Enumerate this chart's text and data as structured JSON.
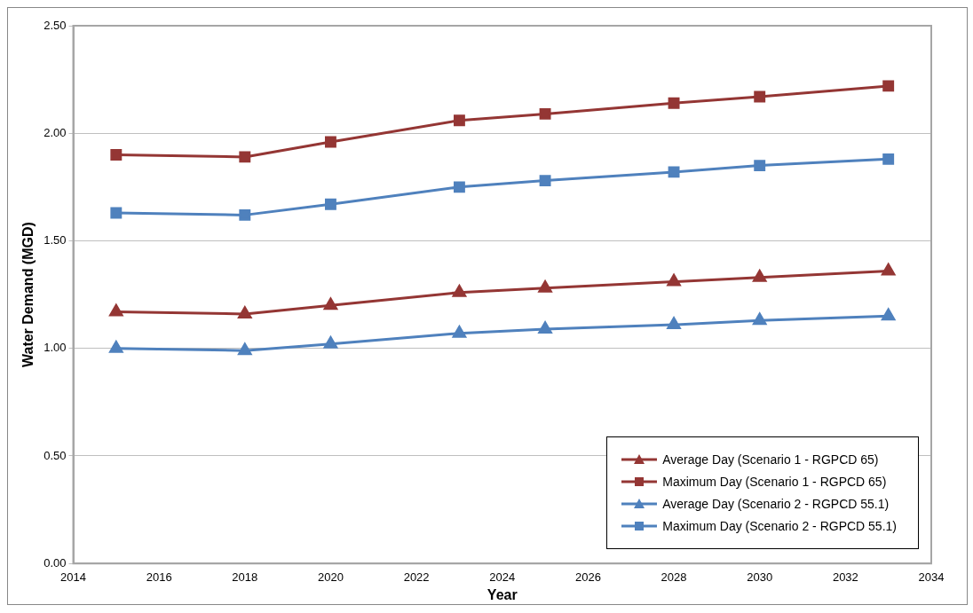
{
  "chart_data": {
    "type": "line",
    "xlabel": "Year",
    "ylabel": "Water Demand (MGD)",
    "x": [
      2015,
      2018,
      2020,
      2023,
      2025,
      2028,
      2030,
      2033
    ],
    "series": [
      {
        "name": "Average Day (Scenario 1 - RGPCD 65)",
        "color": "#943634",
        "marker": "triangle",
        "values": [
          1.17,
          1.16,
          1.2,
          1.26,
          1.28,
          1.31,
          1.33,
          1.36
        ]
      },
      {
        "name": "Maximum Day (Scenario 1 - RGPCD 65)",
        "color": "#943634",
        "marker": "square",
        "values": [
          1.9,
          1.89,
          1.96,
          2.06,
          2.09,
          2.14,
          2.17,
          2.22
        ]
      },
      {
        "name": "Average Day (Scenario 2 - RGPCD 55.1)",
        "color": "#4f81bd",
        "marker": "triangle",
        "values": [
          1.0,
          0.99,
          1.02,
          1.07,
          1.09,
          1.11,
          1.13,
          1.15
        ]
      },
      {
        "name": "Maximum Day (Scenario 2 - RGPCD 55.1)",
        "color": "#4f81bd",
        "marker": "square",
        "values": [
          1.63,
          1.62,
          1.67,
          1.75,
          1.78,
          1.82,
          1.85,
          1.88
        ]
      }
    ],
    "xlim": [
      2014,
      2034
    ],
    "xticks": [
      2014,
      2016,
      2018,
      2020,
      2022,
      2024,
      2026,
      2028,
      2030,
      2032,
      2034
    ],
    "ylim": [
      0,
      2.5
    ],
    "yticks": [
      {
        "value": 0,
        "label": "0.00"
      },
      {
        "value": 0.5,
        "label": "0.50"
      },
      {
        "value": 1,
        "label": "1.00"
      },
      {
        "value": 1.5,
        "label": "1.50"
      },
      {
        "value": 2,
        "label": "2.00"
      },
      {
        "value": 2.5,
        "label": "2.50"
      }
    ],
    "grid": "y",
    "legend": "bottom right",
    "line_style": "solid"
  }
}
